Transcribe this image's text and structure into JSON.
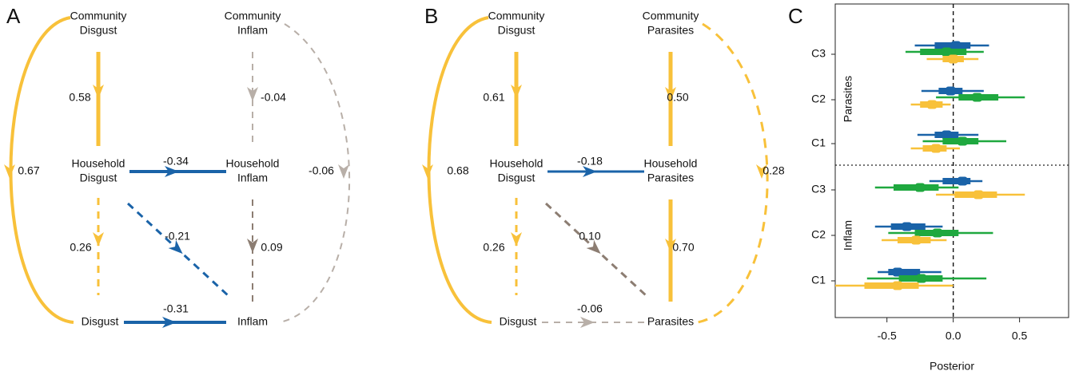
{
  "panels": [
    {
      "label": "A",
      "nodes": [
        [
          "Community",
          "Disgust"
        ],
        [
          "Community",
          "Inflam"
        ],
        [
          "Household",
          "Disgust"
        ],
        [
          "Household",
          "Inflam"
        ],
        [
          "Disgust"
        ],
        [
          "Inflam"
        ]
      ],
      "edges": [
        "0.67",
        "0.58",
        "-0.04",
        "-0.06",
        "-0.34",
        "-0.21",
        "0.09",
        "0.26",
        "-0.31"
      ]
    },
    {
      "label": "B",
      "nodes": [
        [
          "Community",
          "Disgust"
        ],
        [
          "Community",
          "Parasites"
        ],
        [
          "Household",
          "Disgust"
        ],
        [
          "Household",
          "Parasites"
        ],
        [
          "Disgust"
        ],
        [
          "Parasites"
        ]
      ],
      "edges": [
        "0.68",
        "0.61",
        "0.50",
        "0.28",
        "-0.18",
        "0.10",
        "0.70",
        "0.26",
        "-0.06"
      ]
    }
  ],
  "chart_data": {
    "type": "interval",
    "panel_label": "C",
    "xlabel": "Posterior",
    "groups": [
      {
        "label": "Parasites",
        "categories": [
          "C3",
          "C2",
          "C1"
        ]
      },
      {
        "label": "Inflam",
        "categories": [
          "C3",
          "C2",
          "C1"
        ]
      }
    ],
    "xlim": [
      -0.89,
      0.87
    ],
    "xticks": [
      {
        "value": -0.5,
        "label": "-0.5"
      },
      {
        "value": 0,
        "label": "0.0"
      },
      {
        "value": 0.5,
        "label": "0.5"
      }
    ],
    "reference_line": 0,
    "series": [
      {
        "color": "#1a63a8",
        "median": [
          0.02,
          -0.02,
          -0.05,
          0.07,
          -0.35,
          -0.42
        ],
        "inner_low": [
          -0.14,
          -0.11,
          -0.14,
          -0.08,
          -0.47,
          -0.49
        ],
        "inner_high": [
          0.13,
          0.07,
          0.04,
          0.13,
          -0.21,
          -0.25
        ],
        "outer_low": [
          -0.29,
          -0.24,
          -0.27,
          -0.18,
          -0.59,
          -0.57
        ],
        "outer_high": [
          0.27,
          0.23,
          0.19,
          0.22,
          -0.08,
          -0.09
        ]
      },
      {
        "color": "#1fa83f",
        "median": [
          -0.05,
          0.18,
          0.07,
          -0.25,
          -0.12,
          -0.24
        ],
        "inner_low": [
          -0.25,
          0.04,
          -0.08,
          -0.45,
          -0.29,
          -0.41
        ],
        "inner_high": [
          0.1,
          0.34,
          0.19,
          -0.11,
          0.04,
          -0.08
        ],
        "outer_low": [
          -0.36,
          -0.13,
          -0.23,
          -0.59,
          -0.49,
          -0.65
        ],
        "outer_high": [
          0.23,
          0.54,
          0.4,
          0.04,
          0.3,
          0.25
        ]
      },
      {
        "color": "#f8c13a",
        "median": [
          0.0,
          -0.16,
          -0.13,
          0.19,
          -0.28,
          -0.42
        ],
        "inner_low": [
          -0.08,
          -0.25,
          -0.23,
          0.01,
          -0.42,
          -0.67
        ],
        "inner_high": [
          0.08,
          -0.08,
          -0.05,
          0.33,
          -0.17,
          -0.26
        ],
        "outer_low": [
          -0.2,
          -0.32,
          -0.32,
          -0.13,
          -0.54,
          -0.89
        ],
        "outer_high": [
          0.19,
          -0.02,
          0.05,
          0.54,
          -0.05,
          0.0
        ]
      }
    ]
  }
}
